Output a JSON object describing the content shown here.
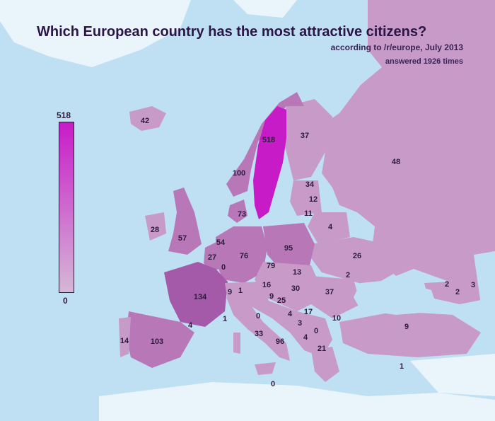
{
  "header": {
    "title": "Which European country has the most attractive citizens?",
    "source": "according to /r/europe, July 2013",
    "responses": "answered 1926 times"
  },
  "legend": {
    "max_label": "518",
    "min_label": "0",
    "color_max": "#c81bc8",
    "color_min": "#d5b8d5"
  },
  "colors": {
    "sea": "#bfe0f3",
    "land_nonvoting": "#eaf4fb",
    "low": "#c89ac8",
    "mid": "#b878b8",
    "high": "#a45aa8",
    "top": "#c81bc8"
  },
  "countries": [
    {
      "name": "Iceland",
      "value": "42"
    },
    {
      "name": "Sweden",
      "value": "518"
    },
    {
      "name": "Finland",
      "value": "37"
    },
    {
      "name": "Russia",
      "value": "48"
    },
    {
      "name": "Norway",
      "value": "100"
    },
    {
      "name": "Estonia",
      "value": "34"
    },
    {
      "name": "Latvia",
      "value": "12"
    },
    {
      "name": "Lithuania",
      "value": "11"
    },
    {
      "name": "Denmark",
      "value": "73"
    },
    {
      "name": "Belarus",
      "value": "4"
    },
    {
      "name": "Ireland",
      "value": "28"
    },
    {
      "name": "United Kingdom",
      "value": "57"
    },
    {
      "name": "Netherlands",
      "value": "54"
    },
    {
      "name": "Belgium",
      "value": "27"
    },
    {
      "name": "Luxembourg",
      "value": "0"
    },
    {
      "name": "Germany",
      "value": "76"
    },
    {
      "name": "Poland",
      "value": "95"
    },
    {
      "name": "Ukraine",
      "value": "26"
    },
    {
      "name": "Czech Republic",
      "value": "79"
    },
    {
      "name": "Slovakia",
      "value": "13"
    },
    {
      "name": "Moldova",
      "value": "2"
    },
    {
      "name": "France",
      "value": "134"
    },
    {
      "name": "Switzerland",
      "value": "9"
    },
    {
      "name": "Liechtenstein",
      "value": "1"
    },
    {
      "name": "Austria",
      "value": "16"
    },
    {
      "name": "Hungary",
      "value": "30"
    },
    {
      "name": "Slovenia",
      "value": "9"
    },
    {
      "name": "Croatia",
      "value": "25"
    },
    {
      "name": "Romania",
      "value": "37"
    },
    {
      "name": "Monaco",
      "value": "1"
    },
    {
      "name": "Andorra",
      "value": "4"
    },
    {
      "name": "San Marino",
      "value": "0"
    },
    {
      "name": "Bosnia and Herzegovina",
      "value": "4"
    },
    {
      "name": "Serbia",
      "value": "17"
    },
    {
      "name": "Bulgaria",
      "value": "10"
    },
    {
      "name": "Montenegro",
      "value": "3"
    },
    {
      "name": "Kosovo",
      "value": "0"
    },
    {
      "name": "Macedonia",
      "value": "4"
    },
    {
      "name": "Italy",
      "value": "33"
    },
    {
      "name": "Vatican",
      "value": "96"
    },
    {
      "name": "Albania",
      "value": "21"
    },
    {
      "name": "Greece",
      "value": "1"
    },
    {
      "name": "Malta",
      "value": "0"
    },
    {
      "name": "Portugal",
      "value": "14"
    },
    {
      "name": "Spain",
      "value": "103"
    },
    {
      "name": "Turkey",
      "value": "9"
    },
    {
      "name": "Georgia",
      "value": "2"
    },
    {
      "name": "Armenia",
      "value": "2"
    },
    {
      "name": "Azerbaijan",
      "value": "3"
    }
  ]
}
